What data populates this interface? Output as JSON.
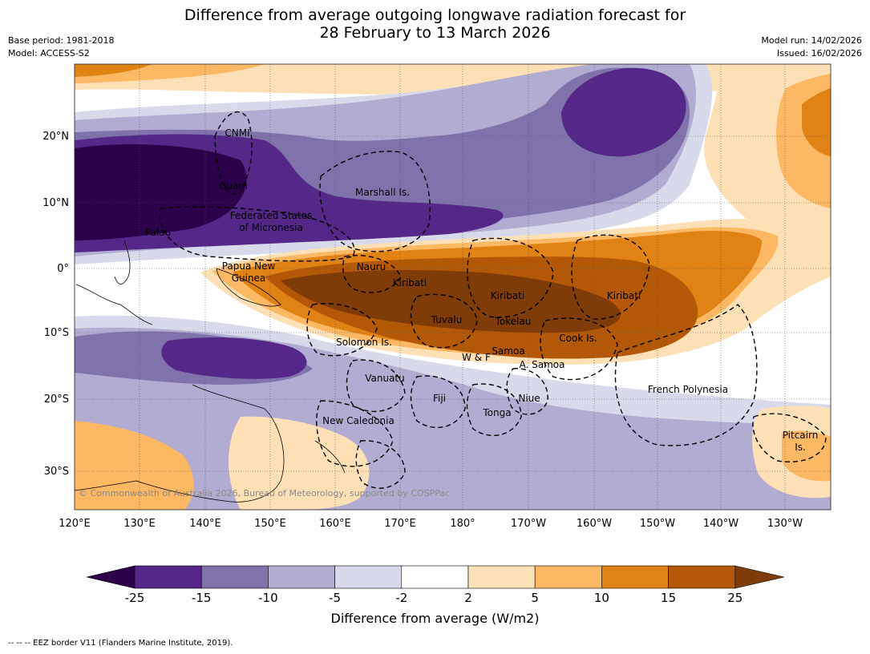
{
  "title": {
    "line1": "Difference from average outgoing longwave radiation forecast for",
    "line2": "28 February to 13 March 2026"
  },
  "meta_left": {
    "base_period": "Base period: 1981-2018",
    "model": "Model: ACCESS-S2"
  },
  "meta_right": {
    "model_run": "Model run: 14/02/2026",
    "issued": "Issued: 16/02/2026"
  },
  "map": {
    "lon_labels": [
      "120°E",
      "130°E",
      "140°E",
      "150°E",
      "160°E",
      "170°E",
      "180°",
      "170°W",
      "160°W",
      "150°W",
      "140°W",
      "130°W"
    ],
    "lat_labels": [
      "20°N",
      "10°N",
      "0°",
      "10°S",
      "20°S",
      "30°S"
    ],
    "regions": [
      "CNMI",
      "Guam",
      "Marshall Is.",
      "Federated States",
      "of Micronesia",
      "Palau",
      "Papua New",
      "Guinea",
      "Nauru",
      "Kiribati",
      "Kiribati",
      "Kiribati",
      "Tuvalu",
      "Tokelau",
      "Cook Is.",
      "Solomon Is.",
      "W & F",
      "Samoa",
      "A. Samoa",
      "Vanuatu",
      "Fiji",
      "Niue",
      "Tonga",
      "French Polynesia",
      "New Caledonia",
      "Pitcairn",
      "Is."
    ],
    "copyright": "© Commonwealth of Australia 2026, Bureau of Meteorology, supported by COSPPac"
  },
  "colorbar": {
    "ticks": [
      "-25",
      "-15",
      "-10",
      "-5",
      "-2",
      "2",
      "5",
      "10",
      "15",
      "25"
    ],
    "colors": {
      "lt_-25": "#2d004b",
      "b1": "#542788",
      "b2": "#8073ac",
      "b3": "#b2abd2",
      "b4": "#d8daeb",
      "b5": "#ffffff",
      "b6": "#fee0b6",
      "b7": "#fdb863",
      "b8": "#e08214",
      "b9": "#b35806",
      "gt_25": "#7f3b08"
    },
    "label": "Difference from average (W/m2)"
  },
  "footer": "--  --  -- EEZ border V11 (Flanders Marine Institute, 2019)."
}
